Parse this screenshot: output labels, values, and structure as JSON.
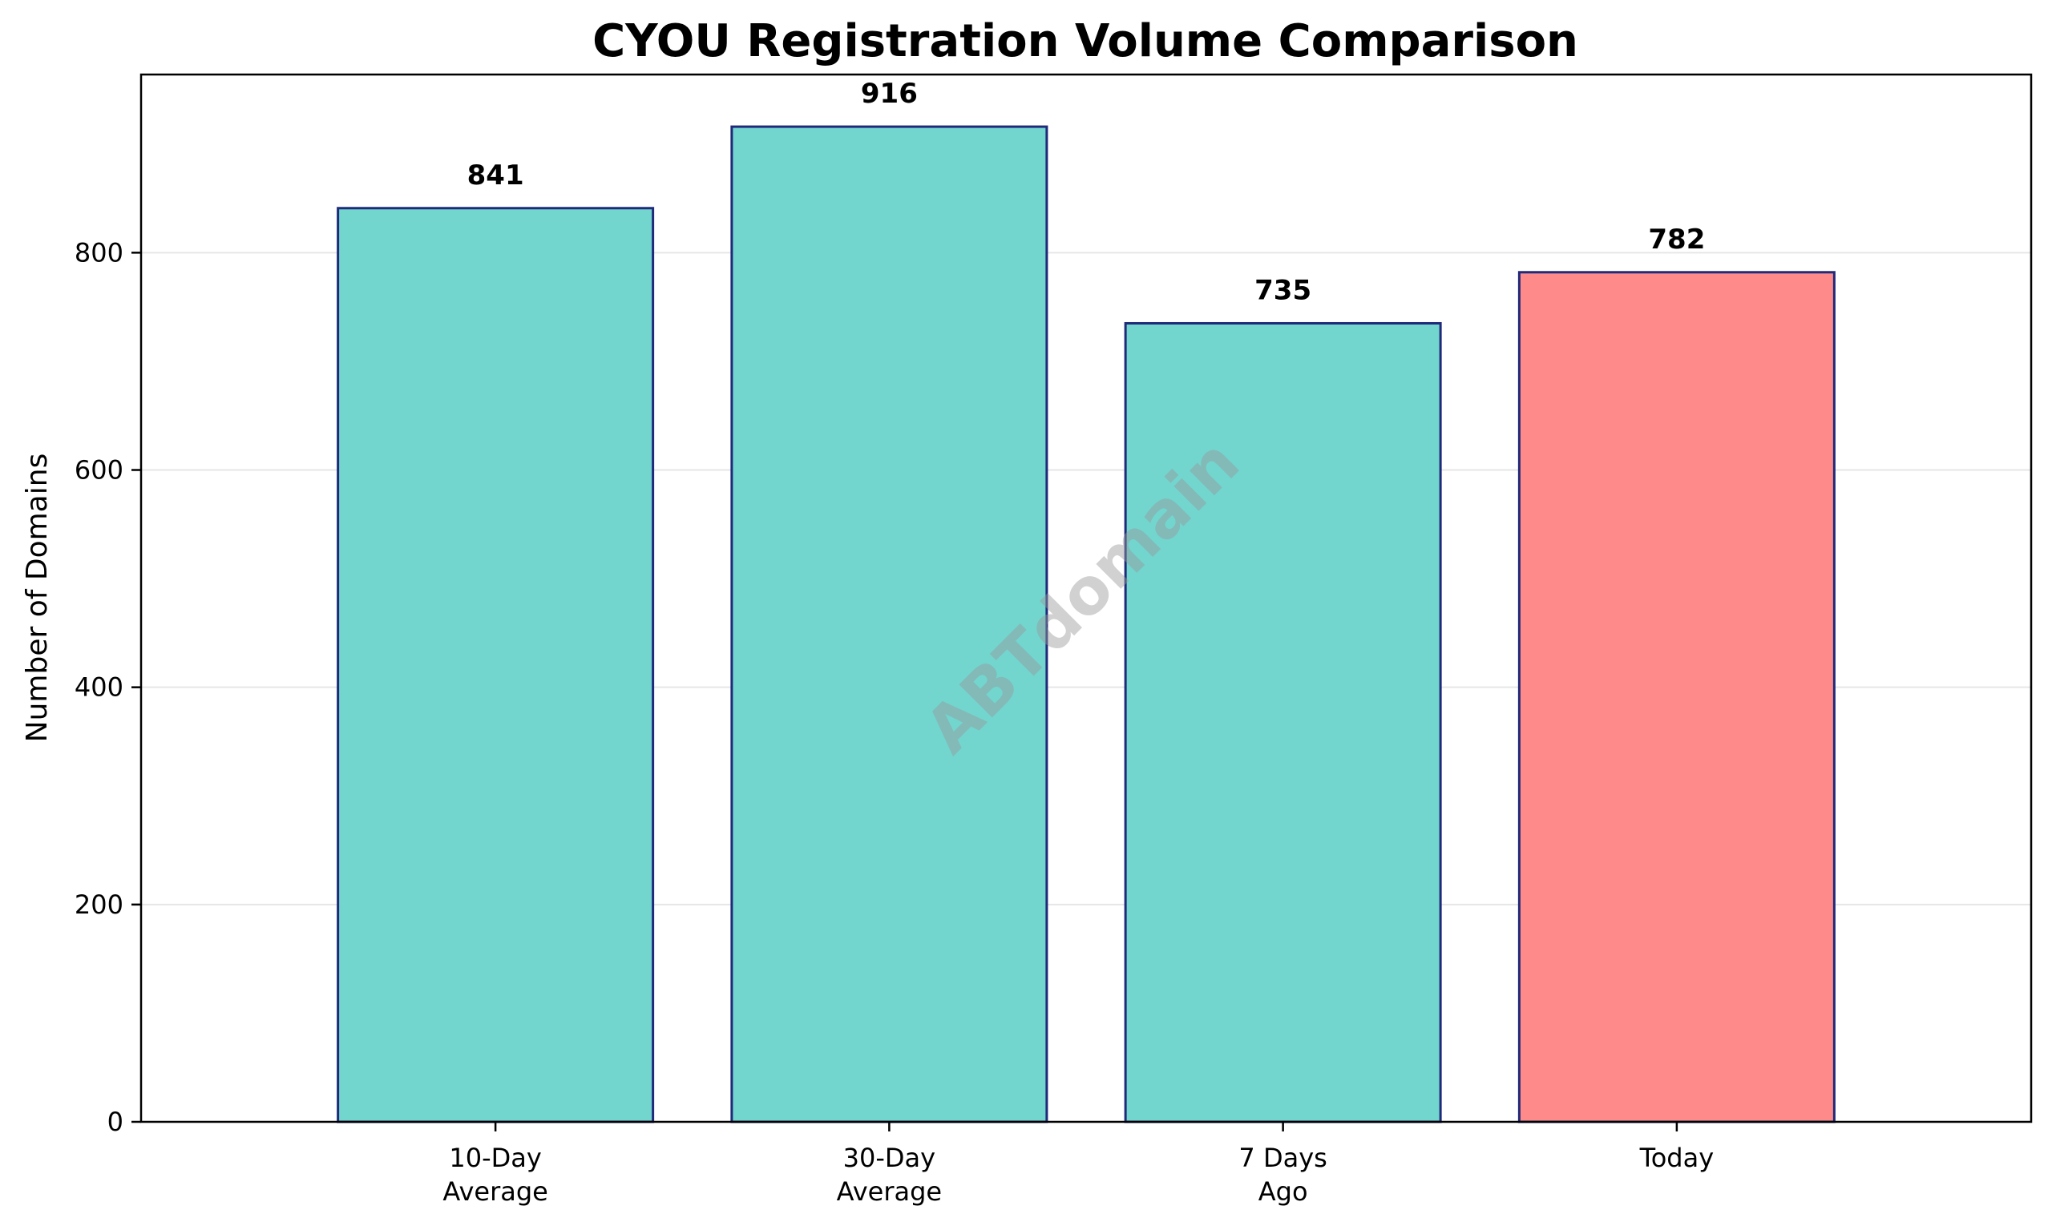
{
  "chart_data": {
    "type": "bar",
    "title": "CYOU Registration Volume Comparison",
    "xlabel": "",
    "ylabel": "Number of Domains",
    "categories": [
      [
        "10-Day",
        "Average"
      ],
      [
        "30-Day",
        "Average"
      ],
      [
        "7 Days",
        "Ago"
      ],
      [
        "Today"
      ]
    ],
    "values": [
      841,
      916,
      735,
      782
    ],
    "value_labels": [
      "841",
      "916",
      "735",
      "782"
    ],
    "bar_colors": [
      "#72d6cf",
      "#72d6cf",
      "#72d6cf",
      "#ff8a8a"
    ],
    "bar_edge_color": "#1f2a7a",
    "ylim": [
      0,
      964
    ],
    "yticks": [
      0,
      200,
      400,
      600,
      800
    ],
    "ytick_labels": [
      "0",
      "200",
      "400",
      "600",
      "800"
    ],
    "grid": {
      "axis": "y",
      "color": "#e6e6e6"
    },
    "watermark": "ABTdomain"
  }
}
